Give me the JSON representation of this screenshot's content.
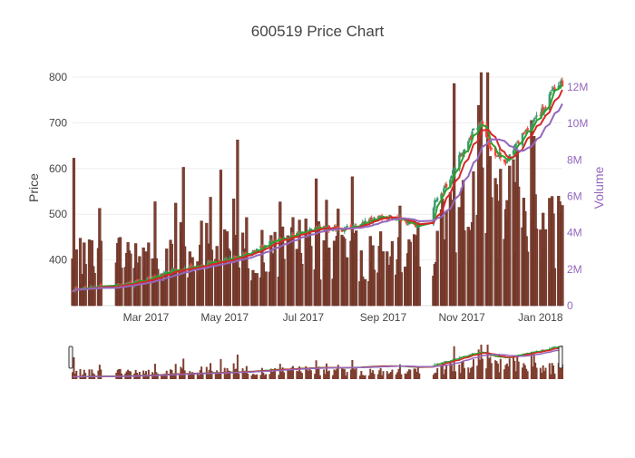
{
  "chart_data": {
    "type": "candlestick",
    "title": "600519 Price Chart",
    "xlabel": "",
    "ylabel": "Price",
    "y2label": "Volume",
    "x_ticks": [
      "Mar 2017",
      "May 2017",
      "Jul 2017",
      "Sep 2017",
      "Nov 2017",
      "Jan 2018"
    ],
    "y_ticks": [
      400,
      500,
      600,
      700,
      800
    ],
    "y2_ticks": [
      "0",
      "2M",
      "4M",
      "6M",
      "8M",
      "10M",
      "12M"
    ],
    "y2_tick_values": [
      0,
      2000000,
      4000000,
      6000000,
      8000000,
      10000000,
      12000000
    ],
    "x_range": [
      "2017-01-03",
      "2018-01-18"
    ],
    "ylim": [
      300,
      810
    ],
    "y2lim": [
      0,
      12800000
    ],
    "grid": true,
    "rangeslider": true,
    "colors": {
      "up": "#3d9970",
      "down": "#ff4136",
      "volume": "#7f3f30",
      "ma_fast": "#2ca02c",
      "ma_mid": "#d62728",
      "ma_slow": "#9467bd",
      "y2_axis_text": "#9467bd",
      "text": "#444444",
      "grid": "#eeeeee"
    },
    "price_anchors": [
      [
        "2017-01-03",
        334
      ],
      [
        "2017-01-20",
        340
      ],
      [
        "2017-02-10",
        345
      ],
      [
        "2017-02-28",
        355
      ],
      [
        "2017-03-20",
        375
      ],
      [
        "2017-04-15",
        390
      ],
      [
        "2017-05-10",
        405
      ],
      [
        "2017-05-25",
        420
      ],
      [
        "2017-06-10",
        445
      ],
      [
        "2017-06-30",
        460
      ],
      [
        "2017-07-15",
        470
      ],
      [
        "2017-07-31",
        465
      ],
      [
        "2017-08-15",
        480
      ],
      [
        "2017-08-31",
        495
      ],
      [
        "2017-09-15",
        488
      ],
      [
        "2017-09-28",
        475
      ],
      [
        "2017-10-10",
        520
      ],
      [
        "2017-10-20",
        560
      ],
      [
        "2017-10-31",
        630
      ],
      [
        "2017-11-10",
        680
      ],
      [
        "2017-11-16",
        700
      ],
      [
        "2017-11-24",
        640
      ],
      [
        "2017-12-05",
        620
      ],
      [
        "2017-12-15",
        660
      ],
      [
        "2017-12-25",
        690
      ],
      [
        "2018-01-05",
        740
      ],
      [
        "2018-01-15",
        790
      ]
    ],
    "volume_anchors": [
      [
        "2017-01-03",
        2500000
      ],
      [
        "2017-03-01",
        2400000
      ],
      [
        "2017-05-01",
        3000000
      ],
      [
        "2017-07-01",
        3100000
      ],
      [
        "2017-09-01",
        2600000
      ],
      [
        "2017-10-15",
        3600000
      ],
      [
        "2017-11-15",
        5500000
      ],
      [
        "2017-12-15",
        4200000
      ],
      [
        "2018-01-18",
        3800000
      ]
    ],
    "volume_spikes": [
      [
        "2017-01-04",
        8100000
      ],
      [
        "2017-03-30",
        7600000
      ],
      [
        "2017-05-11",
        9100000
      ],
      [
        "2017-06-13",
        5700000
      ],
      [
        "2017-07-19",
        5800000
      ],
      [
        "2017-10-26",
        12200000
      ],
      [
        "2017-11-14",
        11000000
      ],
      [
        "2017-11-16",
        12800000
      ],
      [
        "2017-11-21",
        12800000
      ],
      [
        "2017-11-23",
        8200000
      ],
      [
        "2017-12-27",
        9300000
      ],
      [
        "2018-01-10",
        6000000
      ]
    ]
  }
}
